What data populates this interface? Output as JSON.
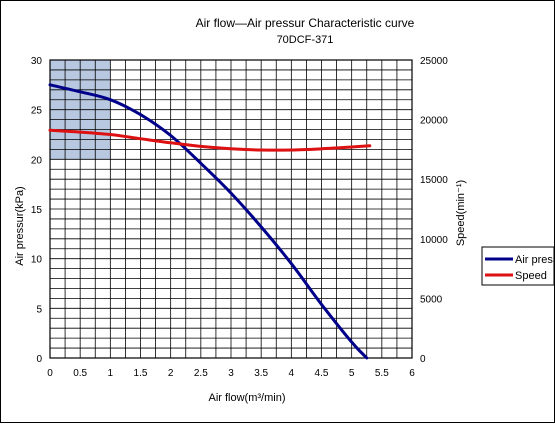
{
  "chart_data": {
    "type": "line",
    "title": "Air flow―Air pressur Characteristic curve",
    "subtitle": "70DCF-371",
    "xlabel": "Air flow(m³/min)",
    "ylabel_left": "Air pressur(kPa)",
    "ylabel_right": "Speed(min⁻¹)",
    "xlim": [
      0,
      6
    ],
    "ylim_left": [
      0,
      30
    ],
    "ylim_right": [
      0,
      25000
    ],
    "x_ticks": [
      "0",
      "0.5",
      "1",
      "1.5",
      "2",
      "2.5",
      "3",
      "3.5",
      "4",
      "4.5",
      "5",
      "5.5",
      "6"
    ],
    "y_left_ticks": [
      "0",
      "5",
      "10",
      "15",
      "20",
      "25",
      "30"
    ],
    "y_right_ticks": [
      "0",
      "5000",
      "10000",
      "15000",
      "20000",
      "25000"
    ],
    "grid": true,
    "legend_position": "right",
    "highlight_region": {
      "x": [
        0,
        1
      ],
      "y": [
        20,
        30
      ],
      "color": "#b8c8e0"
    },
    "series": [
      {
        "name": "Air pressur",
        "axis": "left",
        "color": "#00008b",
        "x": [
          0,
          0.5,
          1.0,
          1.5,
          2.0,
          2.5,
          3.0,
          3.5,
          4.0,
          4.5,
          5.0,
          5.25
        ],
        "y": [
          27.5,
          26.8,
          26.0,
          24.5,
          22.4,
          19.6,
          16.6,
          13.2,
          9.5,
          5.4,
          1.6,
          0
        ]
      },
      {
        "name": "Speed",
        "axis": "right",
        "color": "#dd1111",
        "x": [
          0,
          0.5,
          1.0,
          1.5,
          2.0,
          2.5,
          3.0,
          3.5,
          4.0,
          4.5,
          5.0,
          5.3
        ],
        "y": [
          19100,
          18950,
          18750,
          18400,
          18050,
          17750,
          17550,
          17450,
          17450,
          17550,
          17700,
          17800
        ]
      }
    ]
  }
}
